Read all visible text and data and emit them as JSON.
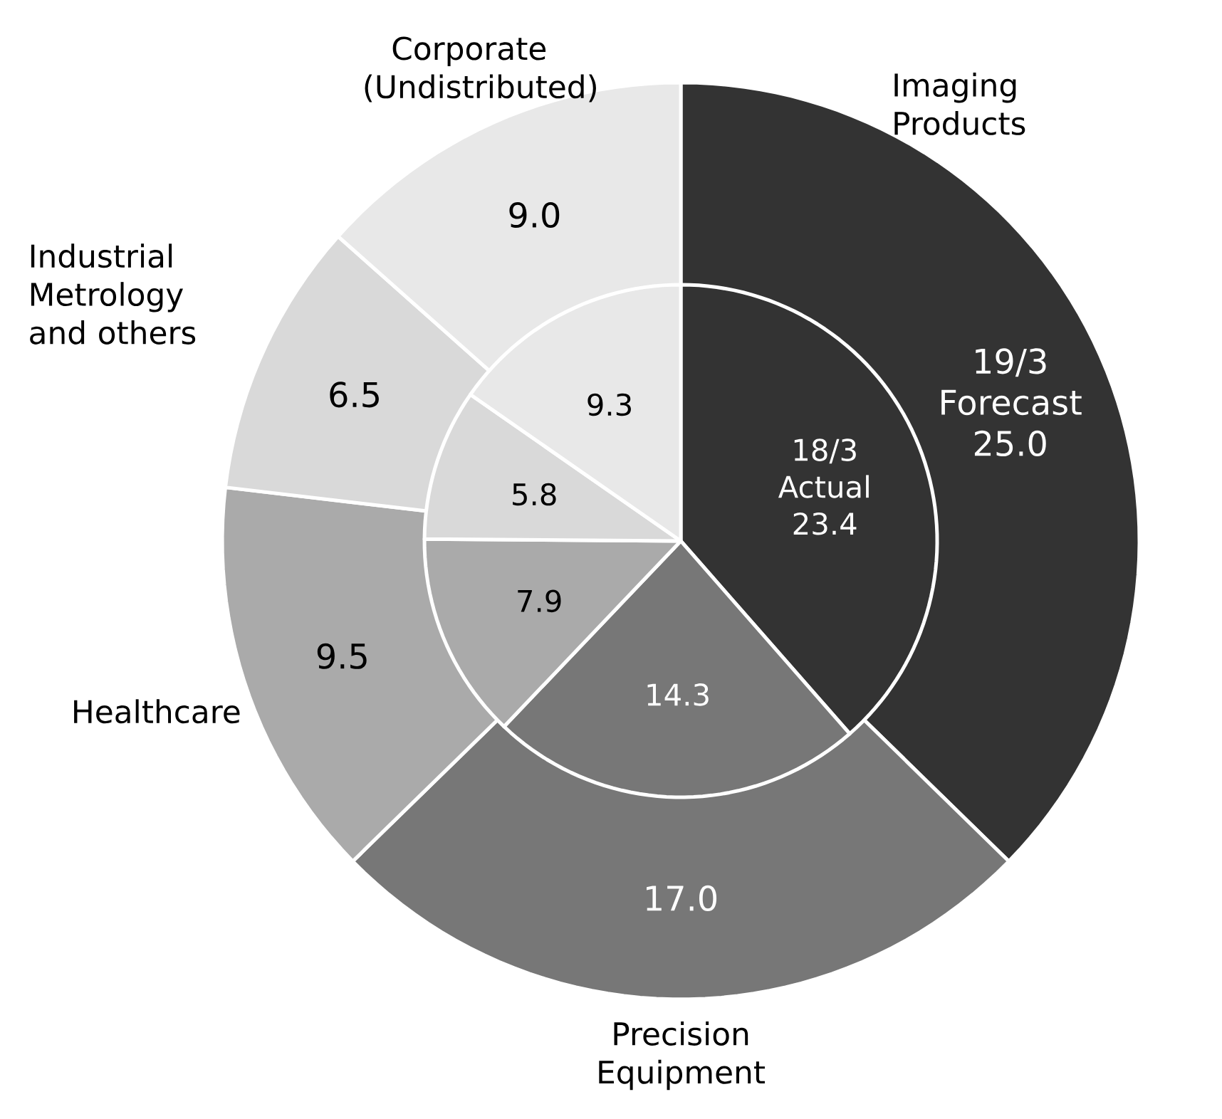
{
  "chart_data": {
    "type": "donut",
    "categories": [
      "Imaging Products",
      "Precision Equipment",
      "Healthcare",
      "Industrial Metrology and others",
      "Corporate (Undistributed)"
    ],
    "colors": [
      "#333333",
      "#777777",
      "#aaaaaa",
      "#d9d9d9",
      "#e8e8e8"
    ],
    "series": [
      {
        "name": "19/3 Forecast",
        "values": [
          25.0,
          17.0,
          9.5,
          6.5,
          9.0
        ],
        "value_labels": [
          "25.0",
          "17.0",
          "9.5",
          "6.5",
          "9.0"
        ]
      },
      {
        "name": "18/3 Actual",
        "values": [
          23.4,
          14.3,
          7.9,
          5.8,
          9.3
        ],
        "value_labels": [
          "23.4",
          "14.3",
          "7.9",
          "5.8",
          "9.3"
        ]
      }
    ]
  }
}
